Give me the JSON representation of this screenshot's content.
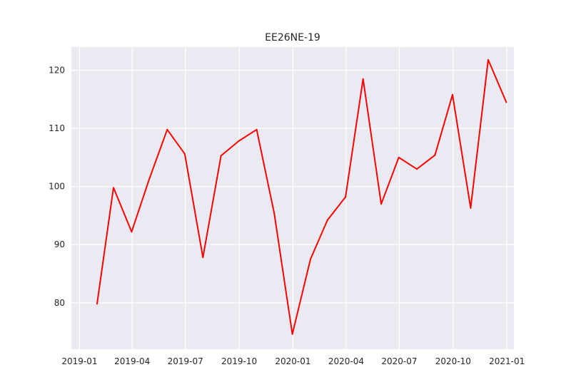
{
  "chart_data": {
    "type": "line",
    "title": "EE26NE-19",
    "xlabel": "",
    "ylabel": "",
    "grid": true,
    "legend": "none",
    "x_axis": {
      "type": "date",
      "range": [
        "2018-12-18",
        "2021-01-13"
      ],
      "ticks": [
        {
          "date": "2019-01-01",
          "label": "2019-01"
        },
        {
          "date": "2019-04-01",
          "label": "2019-04"
        },
        {
          "date": "2019-07-01",
          "label": "2019-07"
        },
        {
          "date": "2019-10-01",
          "label": "2019-10"
        },
        {
          "date": "2020-01-01",
          "label": "2020-01"
        },
        {
          "date": "2020-04-01",
          "label": "2020-04"
        },
        {
          "date": "2020-07-01",
          "label": "2020-07"
        },
        {
          "date": "2020-10-01",
          "label": "2020-10"
        },
        {
          "date": "2021-01-01",
          "label": "2021-01"
        }
      ]
    },
    "y_axis": {
      "range": [
        72,
        124
      ],
      "ticks": [
        80,
        90,
        100,
        110,
        120
      ]
    },
    "series": [
      {
        "color": "#ff0000",
        "x": [
          "2019-01-31",
          "2019-02-28",
          "2019-03-31",
          "2019-04-30",
          "2019-05-31",
          "2019-06-30",
          "2019-07-31",
          "2019-08-31",
          "2019-09-30",
          "2019-10-31",
          "2019-11-30",
          "2019-12-31",
          "2020-01-31",
          "2020-02-29",
          "2020-03-31",
          "2020-04-30",
          "2020-05-31",
          "2020-06-30",
          "2020-07-31",
          "2020-08-31",
          "2020-09-30",
          "2020-10-31",
          "2020-11-30",
          "2020-12-31"
        ],
        "values": [
          79.8,
          99.8,
          92.2,
          101.2,
          109.8,
          105.6,
          87.8,
          105.3,
          107.8,
          109.8,
          95.4,
          74.6,
          87.5,
          94.2,
          98.2,
          118.5,
          97.0,
          105.0,
          103.0,
          105.4,
          115.8,
          96.3,
          121.8,
          114.5
        ]
      }
    ]
  },
  "style": {
    "plot_background": "#eaeaf2",
    "grid_color": "#ffffff",
    "text_color": "#262626"
  }
}
